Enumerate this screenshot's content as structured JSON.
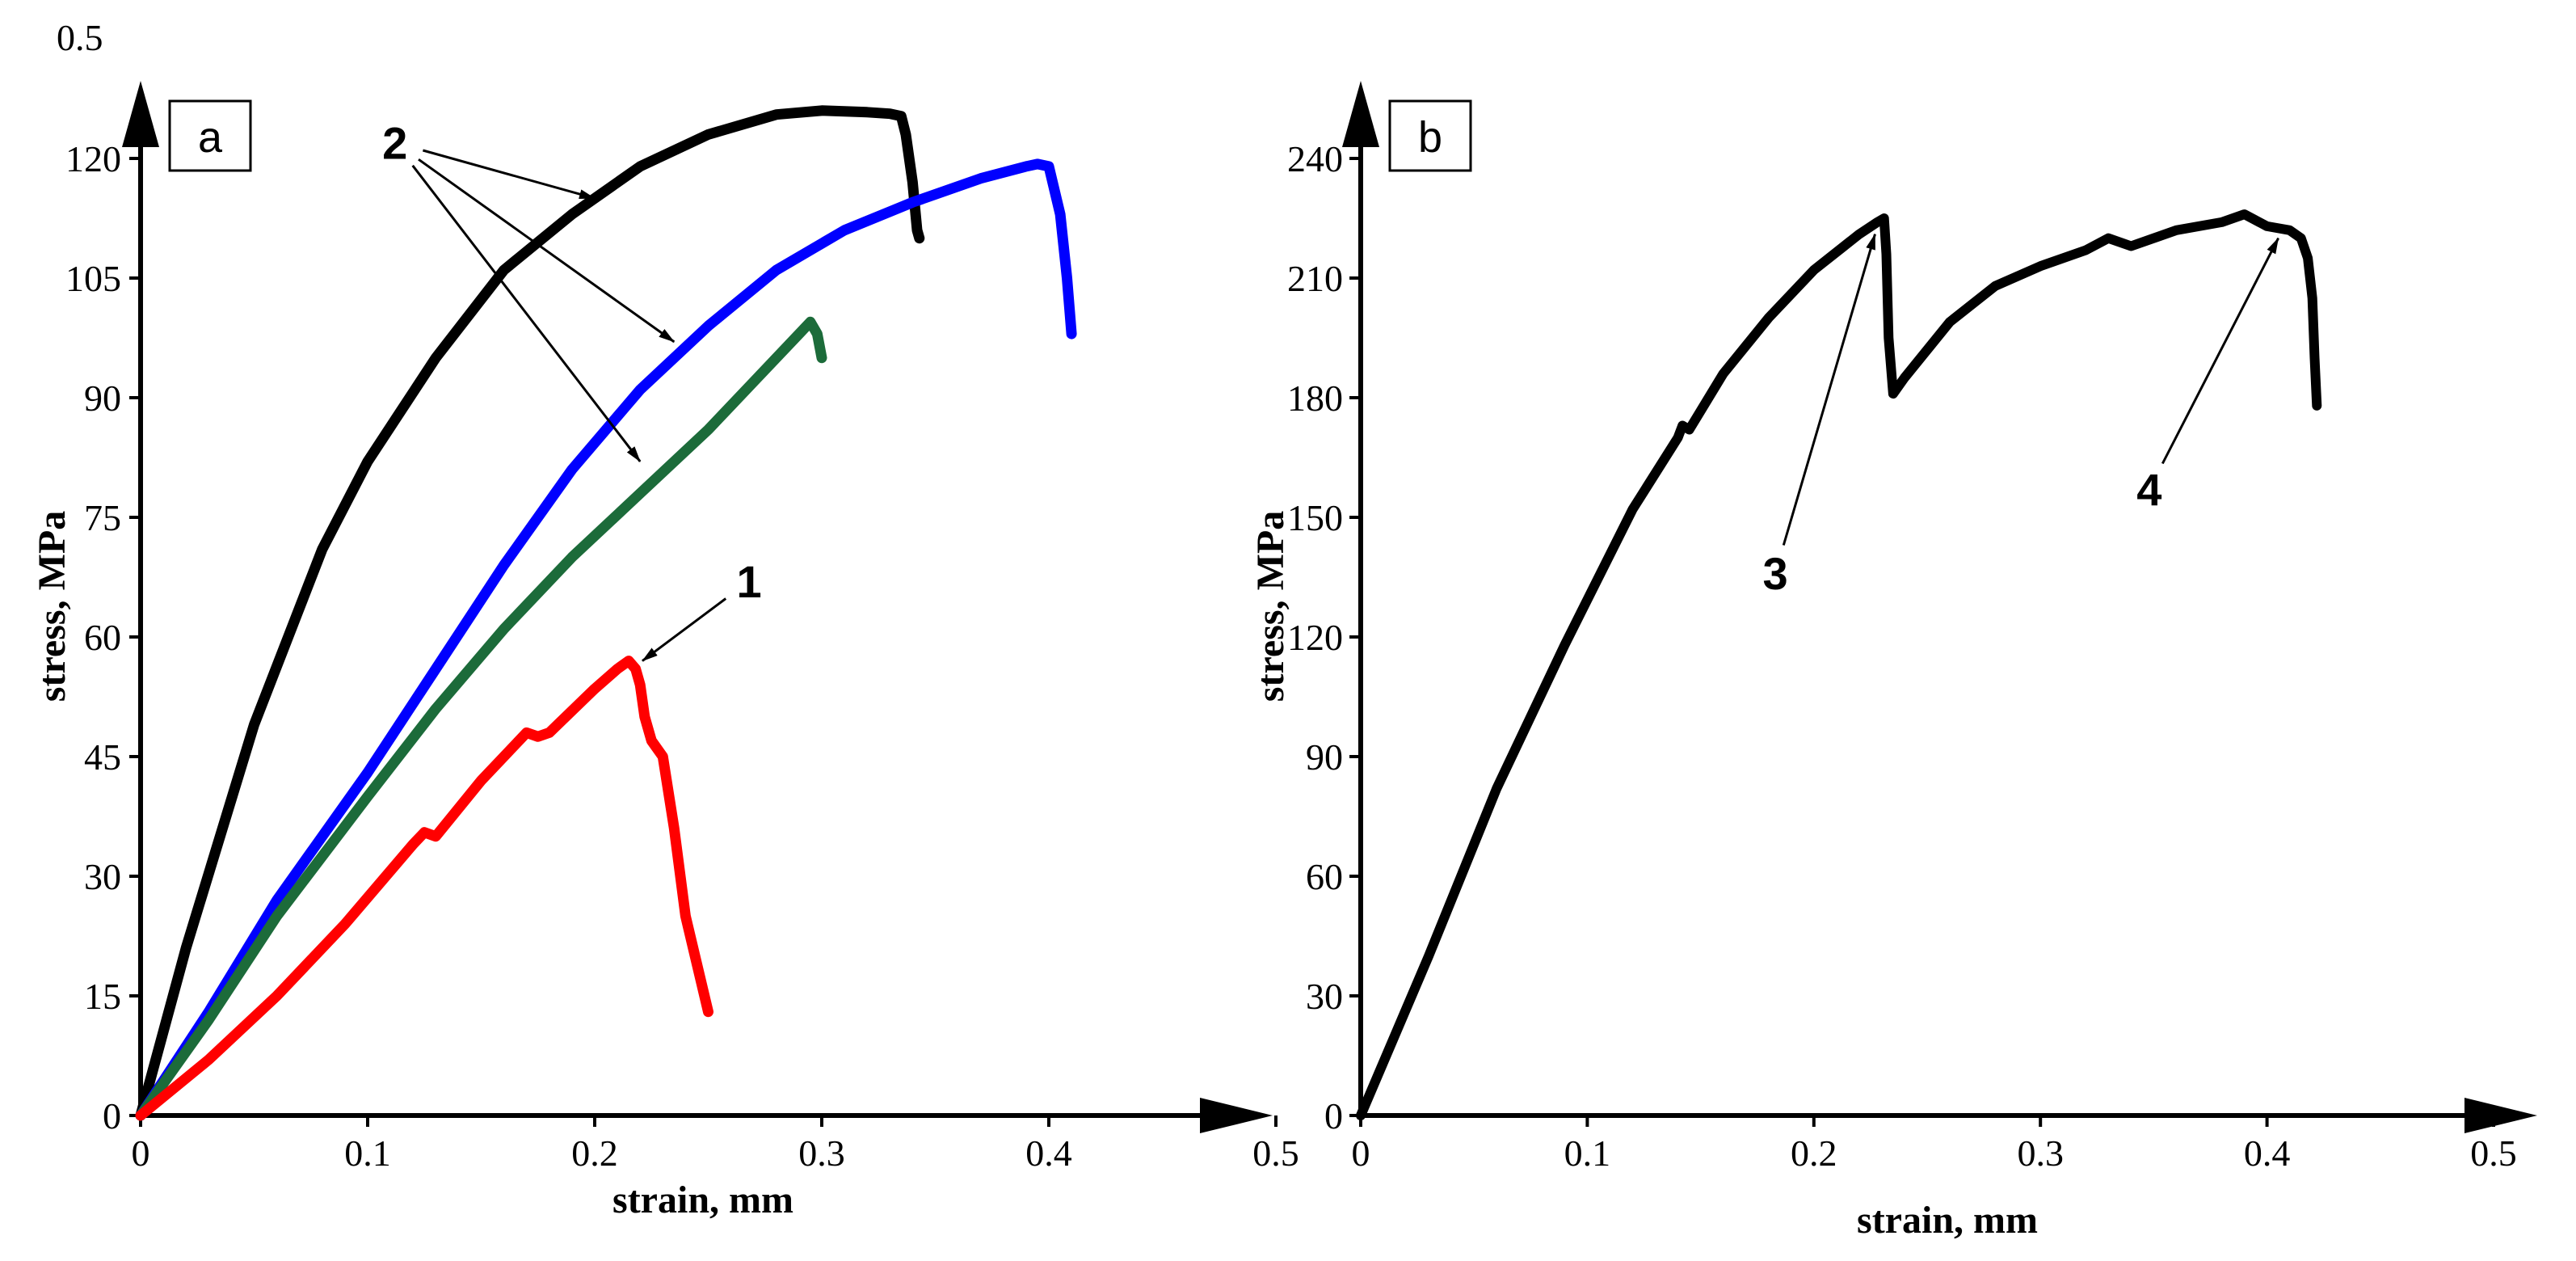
{
  "chart_data": [
    {
      "id": "a",
      "type": "line",
      "panel_label": "a",
      "xlabel": "strain, mm",
      "ylabel": "stress, MPa",
      "xlim": [
        0,
        0.5
      ],
      "ylim": [
        0,
        135
      ],
      "x_ticks": [
        0,
        0.1,
        0.2,
        0.3,
        0.4,
        0.5
      ],
      "x_tick_labels": [
        "0",
        "0.1",
        "0.2",
        "0.3",
        "0.4",
        "0.5"
      ],
      "y_ticks": [
        0,
        15,
        30,
        45,
        60,
        75,
        90,
        105,
        120
      ],
      "y_tick_labels": [
        "0",
        "15",
        "30",
        "45",
        "60",
        "75",
        "90",
        "105",
        "120"
      ],
      "corner_label": "0.5",
      "series": [
        {
          "name": "black",
          "color": "#000000",
          "x": [
            0,
            0.02,
            0.05,
            0.08,
            0.1,
            0.13,
            0.16,
            0.19,
            0.22,
            0.25,
            0.28,
            0.3,
            0.32,
            0.33,
            0.335,
            0.337,
            0.34,
            0.342,
            0.343
          ],
          "y": [
            0,
            21,
            49,
            71,
            82,
            95,
            106,
            113,
            119,
            123,
            125.5,
            126,
            125.8,
            125.6,
            125.3,
            123,
            117,
            111,
            110
          ]
        },
        {
          "name": "blue",
          "color": "#0000ff",
          "x": [
            0,
            0.03,
            0.06,
            0.1,
            0.13,
            0.16,
            0.19,
            0.22,
            0.25,
            0.28,
            0.31,
            0.34,
            0.37,
            0.39,
            0.395,
            0.4,
            0.405,
            0.408,
            0.41
          ],
          "y": [
            0,
            13,
            27,
            43,
            56,
            69,
            81,
            91,
            99,
            106,
            111,
            114.5,
            117.5,
            119,
            119.3,
            119,
            113,
            105,
            98
          ]
        },
        {
          "name": "green",
          "color": "#1c6b3a",
          "x": [
            0,
            0.03,
            0.06,
            0.1,
            0.13,
            0.16,
            0.19,
            0.22,
            0.25,
            0.27,
            0.29,
            0.295,
            0.298,
            0.3
          ],
          "y": [
            0,
            12,
            25,
            40,
            51,
            61,
            70,
            78,
            86,
            92,
            98,
            99.5,
            98,
            95
          ]
        },
        {
          "name": "red",
          "color": "#ff0000",
          "x": [
            0,
            0.03,
            0.06,
            0.09,
            0.12,
            0.125,
            0.13,
            0.15,
            0.17,
            0.175,
            0.18,
            0.2,
            0.21,
            0.215,
            0.218,
            0.22,
            0.222,
            0.225,
            0.23,
            0.235,
            0.24,
            0.25
          ],
          "y": [
            0,
            7,
            15,
            24,
            34,
            35.5,
            35,
            42,
            48,
            47.5,
            48,
            53.5,
            56,
            57,
            56,
            54,
            50,
            47,
            45,
            36,
            25,
            13
          ]
        }
      ],
      "annotations": [
        {
          "label": "2",
          "x": 0.112,
          "y": 122,
          "targets": [
            [
              0.2,
              115
            ],
            [
              0.235,
              97
            ],
            [
              0.22,
              82
            ]
          ]
        },
        {
          "label": "1",
          "x": 0.268,
          "y": 67,
          "targets": [
            [
              0.221,
              57
            ]
          ]
        }
      ]
    },
    {
      "id": "b",
      "type": "line",
      "panel_label": "b",
      "xlabel": "strain, mm",
      "ylabel": "stress, MPa",
      "xlim": [
        0,
        0.5
      ],
      "ylim": [
        0,
        260
      ],
      "x_ticks": [
        0,
        0.1,
        0.2,
        0.3,
        0.4,
        0.5
      ],
      "x_tick_labels": [
        "0",
        "0.1",
        "0.2",
        "0.3",
        "0.4",
        "0.5"
      ],
      "y_ticks": [
        0,
        30,
        60,
        90,
        120,
        150,
        180,
        210,
        240
      ],
      "y_tick_labels": [
        "0",
        "30",
        "60",
        "90",
        "120",
        "150",
        "180",
        "210",
        "240"
      ],
      "series": [
        {
          "name": "black",
          "color": "#000000",
          "x": [
            0,
            0.03,
            0.06,
            0.09,
            0.12,
            0.14,
            0.142,
            0.145,
            0.16,
            0.18,
            0.2,
            0.22,
            0.228,
            0.231,
            0.232,
            0.233,
            0.235,
            0.24,
            0.26,
            0.28,
            0.3,
            0.32,
            0.33,
            0.34,
            0.36,
            0.38,
            0.39,
            0.4,
            0.41,
            0.415,
            0.418,
            0.42,
            0.421,
            0.422
          ],
          "y": [
            0,
            40,
            82,
            118,
            152,
            170,
            173,
            172,
            186,
            200,
            212,
            221,
            224,
            225,
            216,
            195,
            181,
            185,
            199,
            208,
            213,
            217,
            220,
            218,
            222,
            224,
            226,
            223,
            222,
            220,
            215,
            205,
            190,
            178
          ]
        }
      ],
      "annotations": [
        {
          "label": "3",
          "x": 0.183,
          "y": 136,
          "targets": [
            [
              0.227,
              221
            ]
          ]
        },
        {
          "label": "4",
          "x": 0.348,
          "y": 157,
          "targets": [
            [
              0.405,
              220
            ]
          ]
        }
      ]
    }
  ]
}
